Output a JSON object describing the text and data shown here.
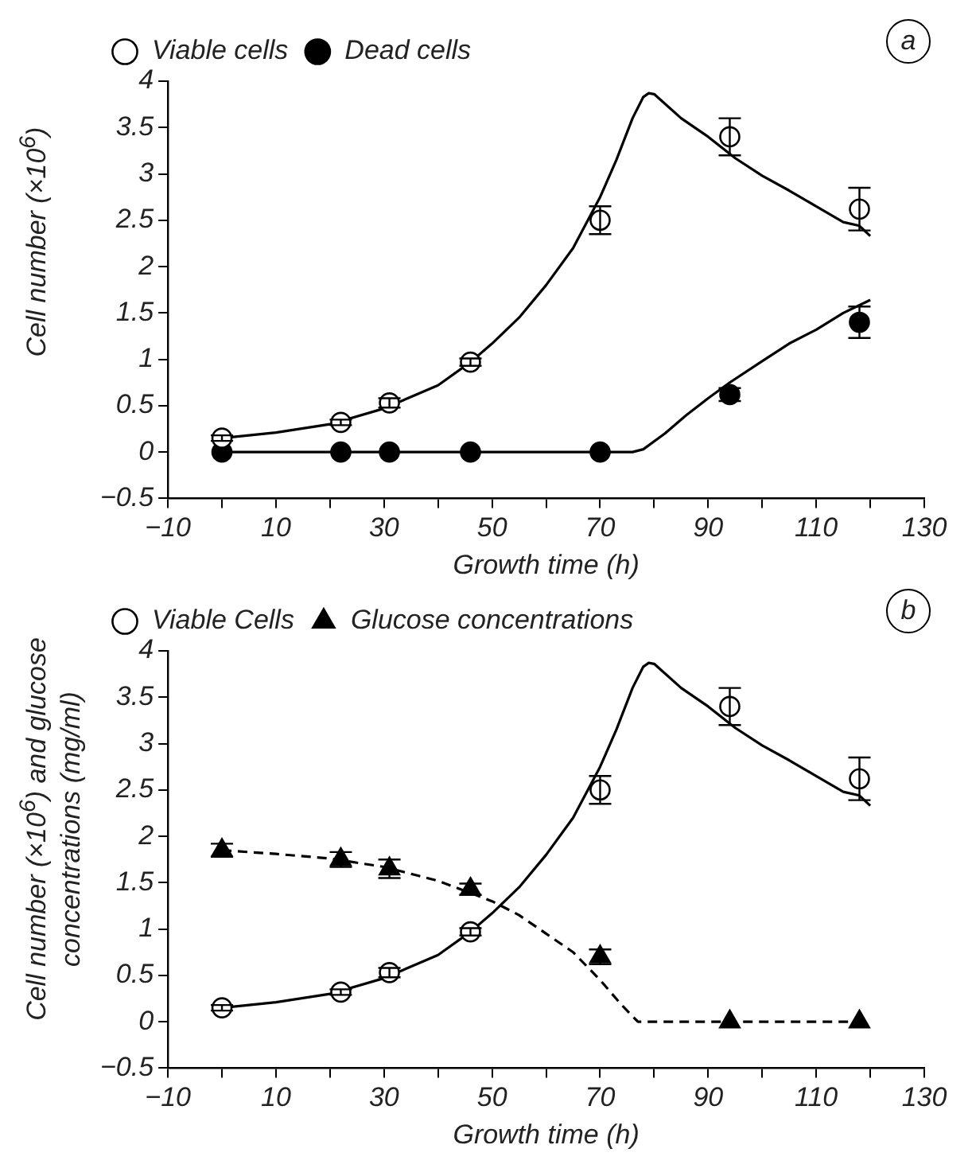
{
  "chart_data": [
    {
      "type": "scatter",
      "xlabel": "Growth time (h)",
      "ylabel": "Cell number (×10$^{6}$)",
      "annotations": [
        "a"
      ],
      "xlim": [
        -10,
        130
      ],
      "xticks": [
        -10,
        {
          "value": 0,
          "label": null
        },
        10,
        {
          "value": 20,
          "label": null
        },
        30,
        {
          "value": 40,
          "label": null
        },
        50,
        {
          "value": 60,
          "label": null
        },
        70,
        {
          "value": 80,
          "label": null
        },
        90,
        {
          "value": 100,
          "label": null
        },
        110,
        {
          "value": 120,
          "label": null
        },
        130
      ],
      "ylim": [
        -0.5,
        4
      ],
      "yticks": [
        -0.5,
        0,
        0.5,
        1,
        1.5,
        2,
        2.5,
        3,
        3.5,
        4
      ],
      "grid": false,
      "legend": "top left",
      "series": [
        {
          "name": "Viable cells",
          "marker": "circle",
          "color": "#000000",
          "x": [
            0,
            22,
            31,
            46,
            70,
            94,
            118
          ],
          "values": [
            0.15,
            0.32,
            0.53,
            0.97,
            2.5,
            3.4,
            2.62
          ],
          "errors": [
            0.03,
            0.03,
            0.05,
            0.04,
            0.15,
            0.2,
            0.23
          ]
        },
        {
          "name": "Dead cells",
          "marker": "circle",
          "color": "#000000",
          "x": [
            0,
            22,
            31,
            46,
            70,
            94,
            118
          ],
          "values": [
            0,
            0,
            0,
            0,
            0,
            0.62,
            1.4
          ],
          "errors": [
            null,
            null,
            null,
            null,
            null,
            0.07,
            0.17
          ]
        },
        {
          "type": "line",
          "marker": "none",
          "line_style": "solid",
          "color": "#000000",
          "x": [
            0,
            10,
            20,
            30,
            40,
            46,
            50,
            55,
            60,
            65,
            70,
            73,
            76,
            78,
            79,
            80,
            85,
            90,
            95,
            100,
            105,
            110,
            115,
            118,
            120
          ],
          "values": [
            0.15,
            0.21,
            0.3,
            0.47,
            0.72,
            0.97,
            1.17,
            1.45,
            1.8,
            2.2,
            2.75,
            3.15,
            3.6,
            3.83,
            3.87,
            3.86,
            3.6,
            3.4,
            3.17,
            2.98,
            2.82,
            2.65,
            2.48,
            2.44,
            2.33
          ]
        },
        {
          "type": "line",
          "marker": "none",
          "line_style": "solid",
          "color": "#000000",
          "x": [
            0,
            76,
            78,
            82,
            86,
            90,
            94,
            100,
            105,
            110,
            115,
            120
          ],
          "values": [
            0,
            0,
            0.03,
            0.2,
            0.4,
            0.58,
            0.75,
            0.98,
            1.17,
            1.32,
            1.5,
            1.64
          ]
        }
      ]
    },
    {
      "type": "scatter",
      "xlabel": "Growth time (h)",
      "ylabel": "Cell number (×10$^{6}$) and glucose concentrations (mg/ml)",
      "annotations": [
        "b"
      ],
      "xlim": [
        -10,
        130
      ],
      "xticks": [
        -10,
        {
          "value": 0,
          "label": null
        },
        10,
        {
          "value": 20,
          "label": null
        },
        30,
        {
          "value": 40,
          "label": null
        },
        50,
        {
          "value": 60,
          "label": null
        },
        70,
        {
          "value": 80,
          "label": null
        },
        90,
        {
          "value": 100,
          "label": null
        },
        110,
        {
          "value": 120,
          "label": null
        },
        130
      ],
      "ylim": [
        -0.5,
        4
      ],
      "yticks": [
        -0.5,
        0,
        0.5,
        1,
        1.5,
        2,
        2.5,
        3,
        3.5,
        4
      ],
      "grid": false,
      "legend": "top left",
      "series": [
        {
          "name": "Viable Cells",
          "marker": "circle",
          "color": "#000000",
          "x": [
            0,
            22,
            31,
            46,
            70,
            94,
            118
          ],
          "values": [
            0.15,
            0.32,
            0.53,
            0.97,
            2.5,
            3.4,
            2.62
          ],
          "errors": [
            0.03,
            0.03,
            0.05,
            0.04,
            0.15,
            0.2,
            0.23
          ]
        },
        {
          "name": "Glucose concentrations",
          "marker": "triangle",
          "color": "#000000",
          "x": [
            0,
            22,
            31,
            46,
            70,
            94,
            118
          ],
          "values": [
            1.85,
            1.75,
            1.65,
            1.43,
            0.7,
            0,
            0
          ],
          "errors": [
            0.07,
            0.08,
            0.1,
            0.06,
            0.08,
            null,
            null
          ]
        },
        {
          "type": "line",
          "marker": "none",
          "line_style": "solid",
          "color": "#000000",
          "x": [
            0,
            10,
            20,
            30,
            40,
            46,
            50,
            55,
            60,
            65,
            70,
            73,
            76,
            78,
            79,
            80,
            85,
            90,
            95,
            100,
            105,
            110,
            115,
            118,
            120
          ],
          "values": [
            0.15,
            0.21,
            0.3,
            0.47,
            0.72,
            0.97,
            1.17,
            1.45,
            1.8,
            2.2,
            2.75,
            3.15,
            3.6,
            3.83,
            3.87,
            3.86,
            3.6,
            3.4,
            3.17,
            2.98,
            2.82,
            2.65,
            2.48,
            2.44,
            2.33
          ]
        },
        {
          "type": "line",
          "marker": "none",
          "line_style": "dashed",
          "color": "#000000",
          "x": [
            0,
            10,
            20,
            30,
            40,
            50,
            55,
            60,
            65,
            70,
            74,
            77,
            120
          ],
          "values": [
            1.85,
            1.81,
            1.76,
            1.67,
            1.52,
            1.3,
            1.15,
            0.95,
            0.75,
            0.45,
            0.18,
            0,
            0
          ]
        }
      ]
    }
  ]
}
